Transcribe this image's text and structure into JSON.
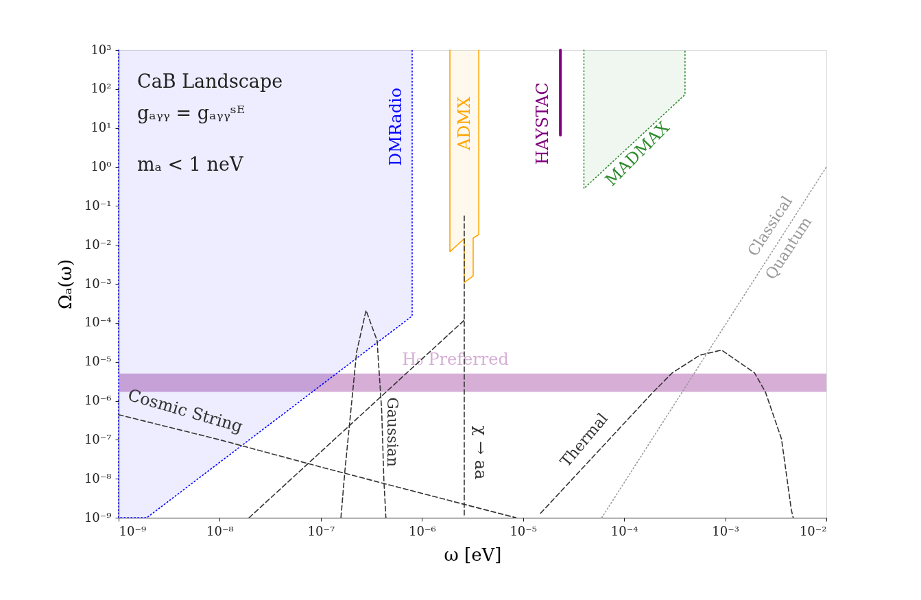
{
  "chart_data": {
    "type": "line",
    "xlabel": "ω [eV]",
    "ylabel": "Ωₐ(ω)",
    "log": "xy",
    "grid": false,
    "xlim": [
      1e-09,
      0.01
    ],
    "xticks": [
      {
        "value": 1e-09,
        "label": "10⁻⁹"
      },
      {
        "value": 1e-08,
        "label": "10⁻⁸"
      },
      {
        "value": 1e-07,
        "label": "10⁻⁷"
      },
      {
        "value": 1e-06,
        "label": "10⁻⁶"
      },
      {
        "value": 1e-05,
        "label": "10⁻⁵"
      },
      {
        "value": 0.0001,
        "label": "10⁻⁴"
      },
      {
        "value": 0.001,
        "label": "10⁻³"
      },
      {
        "value": 0.01,
        "label": "10⁻²"
      }
    ],
    "ylim": [
      1e-09,
      1000.0
    ],
    "yticks": [
      {
        "value": 1e-09,
        "label": "10⁻⁹"
      },
      {
        "value": 1e-08,
        "label": "10⁻⁸"
      },
      {
        "value": 1e-07,
        "label": "10⁻⁷"
      },
      {
        "value": 1e-06,
        "label": "10⁻⁶"
      },
      {
        "value": 1e-05,
        "label": "10⁻⁵"
      },
      {
        "value": 0.0001,
        "label": "10⁻⁴"
      },
      {
        "value": 0.001,
        "label": "10⁻³"
      },
      {
        "value": 0.01,
        "label": "10⁻²"
      },
      {
        "value": 0.1,
        "label": "10⁻¹"
      },
      {
        "value": 1,
        "label": "10⁰"
      },
      {
        "value": 10,
        "label": "10¹"
      },
      {
        "value": 100,
        "label": "10²"
      },
      {
        "value": 1000,
        "label": "10³"
      }
    ],
    "series": [
      {
        "color": "#0000ff",
        "line_style": "dotted",
        "x": [
          1e-09,
          1e-09,
          1.9e-09,
          8e-07,
          8e-07
        ],
        "values": [
          1000,
          1e-09,
          1e-09,
          0.00015,
          1000
        ]
      },
      {
        "color": "#ffa500",
        "line_style": "solid",
        "x": [
          1.89e-06,
          1.89e-06,
          2.62e-06,
          2.62e-06,
          3.21e-06,
          3.21e-06,
          3.65e-06,
          3.65e-06
        ],
        "values": [
          1000,
          0.0067,
          0.0145,
          0.00108,
          0.0016,
          0.015,
          0.0185,
          1000
        ]
      },
      {
        "color": "#800080",
        "line_style": "solid",
        "x": [
          2.34e-05,
          2.34e-05
        ],
        "values": [
          1000,
          6.6
        ]
      },
      {
        "color": "#2e8b2e",
        "line_style": "dotted",
        "x": [
          4e-05,
          4e-05,
          0.0004,
          0.0004
        ],
        "values": [
          1000,
          0.28,
          72,
          1000
        ]
      },
      {
        "color": "#333333",
        "line_style": "dashed",
        "x": [
          1e-09,
          1e-08,
          1e-07,
          1e-06,
          8.5e-06
        ],
        "values": [
          4.4e-07,
          1e-07,
          2e-08,
          4.2e-09,
          1e-09
        ]
      },
      {
        "color": "#333333",
        "line_style": "dashed",
        "x": [
          1.58e-07,
          1.73e-07,
          2.26e-07,
          2.8e-07,
          3.6e-07,
          4e-07,
          4.2e-07,
          4.4e-07
        ],
        "values": [
          1e-09,
          1.6e-08,
          1.8e-05,
          0.00021,
          3.5e-05,
          5.4e-07,
          9.3e-09,
          1e-09
        ]
      },
      {
        "color": "#333333",
        "line_style": "dashed",
        "x": [
          1.95e-08,
          2.62e-06
        ],
        "values": [
          1e-09,
          0.000117
        ]
      },
      {
        "color": "#333333",
        "line_style": "dashed",
        "x": [
          2.62e-06,
          2.62e-06
        ],
        "values": [
          0.055,
          1e-09
        ]
      },
      {
        "color": "#333333",
        "line_style": "dashed",
        "x": [
          1.49e-05,
          0.000193,
          0.000299,
          0.00056,
          0.00092,
          0.00195,
          0.0025,
          0.0036,
          0.0045,
          0.0047
        ],
        "values": [
          1.3e-09,
          1.66e-06,
          5.2e-06,
          1.48e-05,
          2e-05,
          5.2e-06,
          1.66e-06,
          1.05e-07,
          1.6e-09,
          1e-09
        ]
      },
      {
        "color": "#999999",
        "line_style": "dotted",
        "x": [
          6e-05,
          0.01
        ],
        "values": [
          1e-09,
          1
        ]
      }
    ],
    "bands": [
      {
        "axis": "y",
        "from": 1.7e-06,
        "to": 5e-06,
        "color": "#d6aed6",
        "label": "H₀ Preferred"
      }
    ],
    "annotations": [
      "CaB Landscape",
      "gₐᵧᵧ = gₐᵧᵧˢᴱ",
      "mₐ < 1 neV",
      "DMRadio",
      "ADMX",
      "HAYSTAC",
      "MADMAX",
      "Cosmic String",
      "Gaussian",
      "χ → aa",
      "Thermal",
      "Classical",
      "Quantum"
    ]
  }
}
